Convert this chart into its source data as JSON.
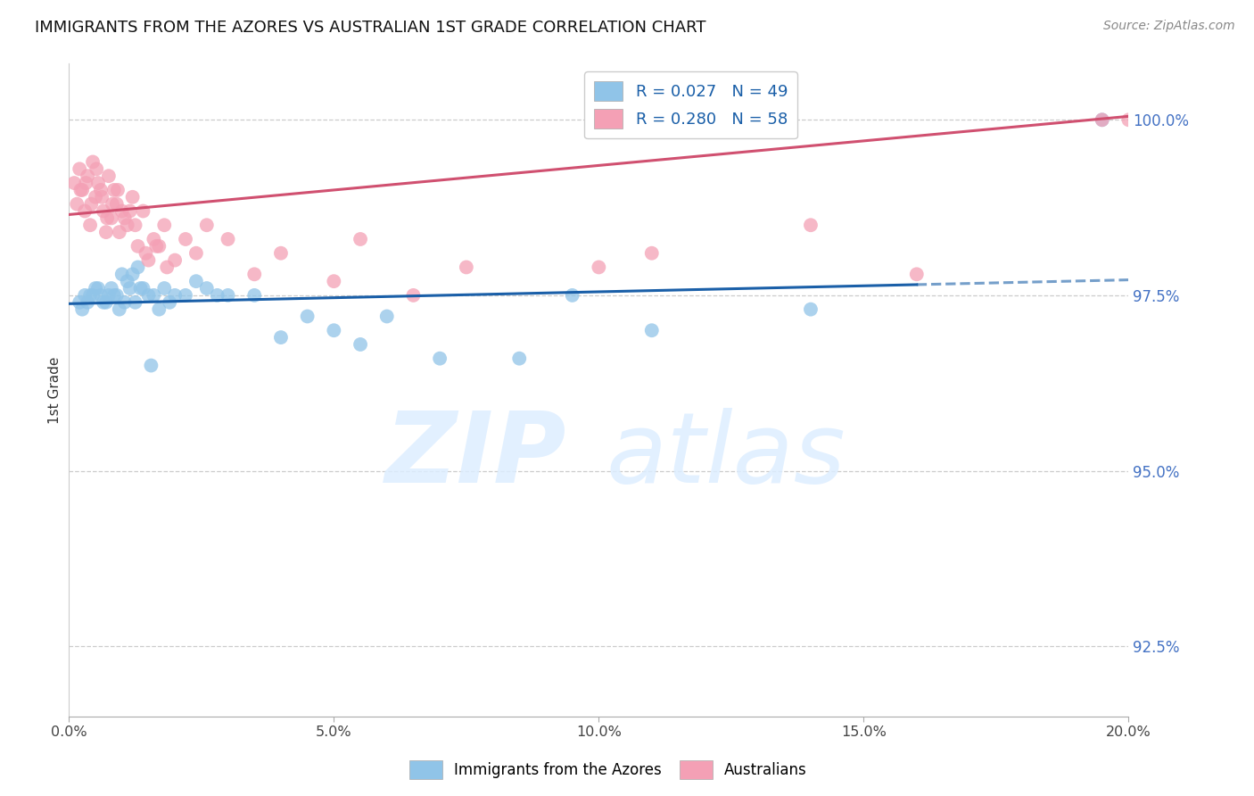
{
  "title": "IMMIGRANTS FROM THE AZORES VS AUSTRALIAN 1ST GRADE CORRELATION CHART",
  "source": "Source: ZipAtlas.com",
  "ylabel": "1st Grade",
  "yticks": [
    92.5,
    95.0,
    97.5,
    100.0
  ],
  "ytick_labels": [
    "92.5%",
    "95.0%",
    "97.5%",
    "100.0%"
  ],
  "xticks": [
    0.0,
    5.0,
    10.0,
    15.0,
    20.0
  ],
  "xtick_labels": [
    "0.0%",
    "5.0%",
    "10.0%",
    "15.0%",
    "20.0%"
  ],
  "xmin": 0.0,
  "xmax": 20.0,
  "ymin": 91.5,
  "ymax": 100.8,
  "blue_R": 0.027,
  "blue_N": 49,
  "pink_R": 0.28,
  "pink_N": 58,
  "blue_color": "#90c4e8",
  "pink_color": "#f4a0b5",
  "blue_line_color": "#1a5fa8",
  "pink_line_color": "#d05070",
  "legend_label_blue": "Immigrants from the Azores",
  "legend_label_pink": "Australians",
  "blue_line_y0": 97.38,
  "blue_line_y20": 97.72,
  "pink_line_y0": 98.65,
  "pink_line_y20": 100.05,
  "blue_dash_start": 16.0,
  "blue_scatter_x": [
    0.2,
    0.3,
    0.4,
    0.5,
    0.6,
    0.7,
    0.8,
    0.9,
    1.0,
    1.1,
    1.2,
    1.3,
    1.4,
    1.5,
    1.6,
    1.7,
    1.8,
    1.9,
    2.0,
    2.2,
    2.4,
    2.6,
    2.8,
    3.0,
    3.5,
    4.0,
    4.5,
    5.0,
    5.5,
    6.0,
    7.0,
    8.5,
    9.5,
    11.0,
    14.0,
    19.5,
    0.25,
    0.35,
    0.45,
    0.55,
    0.65,
    0.75,
    0.85,
    0.95,
    1.05,
    1.15,
    1.25,
    1.35,
    1.55
  ],
  "blue_scatter_y": [
    97.4,
    97.5,
    97.5,
    97.6,
    97.5,
    97.4,
    97.6,
    97.5,
    97.8,
    97.7,
    97.8,
    97.9,
    97.6,
    97.5,
    97.5,
    97.3,
    97.6,
    97.4,
    97.5,
    97.5,
    97.7,
    97.6,
    97.5,
    97.5,
    97.5,
    96.9,
    97.2,
    97.0,
    96.8,
    97.2,
    96.6,
    96.6,
    97.5,
    97.0,
    97.3,
    100.0,
    97.3,
    97.4,
    97.5,
    97.6,
    97.4,
    97.5,
    97.5,
    97.3,
    97.4,
    97.6,
    97.4,
    97.6,
    96.5
  ],
  "pink_scatter_x": [
    0.1,
    0.15,
    0.2,
    0.25,
    0.3,
    0.35,
    0.4,
    0.45,
    0.5,
    0.55,
    0.6,
    0.65,
    0.7,
    0.75,
    0.8,
    0.85,
    0.9,
    0.95,
    1.0,
    1.1,
    1.2,
    1.3,
    1.4,
    1.5,
    1.6,
    1.7,
    1.8,
    2.0,
    2.2,
    2.4,
    2.6,
    3.0,
    3.5,
    4.0,
    5.0,
    5.5,
    6.5,
    7.5,
    10.0,
    11.0,
    14.0,
    16.0,
    19.5,
    20.0,
    0.22,
    0.32,
    0.42,
    0.52,
    0.62,
    0.72,
    0.82,
    0.92,
    1.05,
    1.15,
    1.25,
    1.45,
    1.65,
    1.85
  ],
  "pink_scatter_y": [
    99.1,
    98.8,
    99.3,
    99.0,
    98.7,
    99.2,
    98.5,
    99.4,
    98.9,
    99.1,
    99.0,
    98.7,
    98.4,
    99.2,
    98.6,
    99.0,
    98.8,
    98.4,
    98.7,
    98.5,
    98.9,
    98.2,
    98.7,
    98.0,
    98.3,
    98.2,
    98.5,
    98.0,
    98.3,
    98.1,
    98.5,
    98.3,
    97.8,
    98.1,
    97.7,
    98.3,
    97.5,
    97.9,
    97.9,
    98.1,
    98.5,
    97.8,
    100.0,
    100.0,
    99.0,
    99.1,
    98.8,
    99.3,
    98.9,
    98.6,
    98.8,
    99.0,
    98.6,
    98.7,
    98.5,
    98.1,
    98.2,
    97.9
  ]
}
